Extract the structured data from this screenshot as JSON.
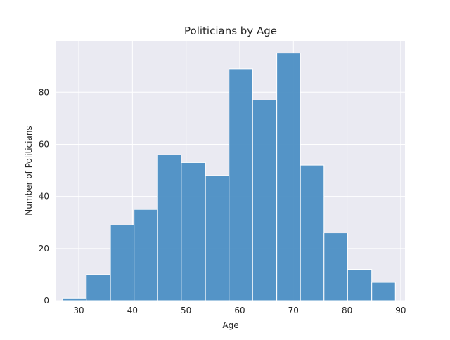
{
  "chart_data": {
    "type": "bar",
    "title": "Politicians by Age",
    "xlabel": "Age",
    "ylabel": "Number of Politicians",
    "x_ticks": [
      30,
      40,
      50,
      60,
      70,
      80,
      90
    ],
    "y_ticks": [
      0,
      20,
      40,
      60,
      80
    ],
    "xlim": [
      25.8,
      90.8
    ],
    "ylim": [
      0,
      99.75
    ],
    "grid": true,
    "bar_color": "#4c8fc4",
    "background_color": "#eaeaf2",
    "bins": [
      {
        "start": 27.0,
        "end": 31.4,
        "value": 1
      },
      {
        "start": 31.4,
        "end": 35.9,
        "value": 10
      },
      {
        "start": 35.9,
        "end": 40.3,
        "value": 29
      },
      {
        "start": 40.3,
        "end": 44.7,
        "value": 35
      },
      {
        "start": 44.7,
        "end": 49.1,
        "value": 56
      },
      {
        "start": 49.1,
        "end": 53.6,
        "value": 53
      },
      {
        "start": 53.6,
        "end": 58.0,
        "value": 48
      },
      {
        "start": 58.0,
        "end": 62.4,
        "value": 89
      },
      {
        "start": 62.4,
        "end": 66.9,
        "value": 77
      },
      {
        "start": 66.9,
        "end": 71.3,
        "value": 95
      },
      {
        "start": 71.3,
        "end": 75.7,
        "value": 52
      },
      {
        "start": 75.7,
        "end": 80.1,
        "value": 26
      },
      {
        "start": 80.1,
        "end": 84.6,
        "value": 12
      },
      {
        "start": 84.6,
        "end": 89.0,
        "value": 7
      }
    ]
  }
}
